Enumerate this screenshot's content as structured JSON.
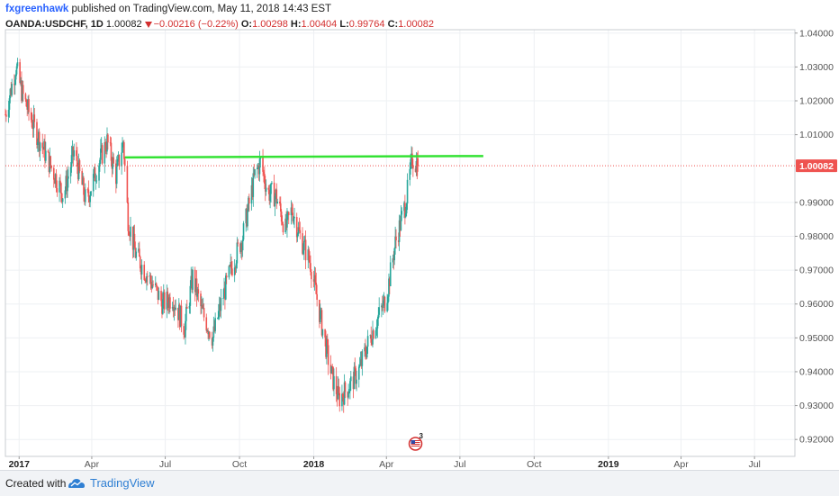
{
  "header": {
    "user": "fxgreenhawk",
    "published_text": " published on TradingView.com, May 11, 2018 14:43 EST",
    "symbol": "OANDA:USDCHF, 1D",
    "last": "1.00082",
    "change": "−0.00216 (−0.22%)",
    "o_label": "O:",
    "o_value": "1.00298",
    "h_label": "H:",
    "h_value": "1.00404",
    "l_label": "L:",
    "l_value": "0.99764",
    "c_label": "C:",
    "c_value": "1.00082",
    "change_direction_icon": "triangle-down-icon"
  },
  "footer": {
    "created_with": "Created with",
    "brand": "TradingView",
    "logo_icon": "tradingview-cloud-icon"
  },
  "colors": {
    "up": "#26a69a",
    "down": "#ef5350",
    "resistance_line": "#33e233",
    "price_line": "#ef5350",
    "price_badge": "#ef5350",
    "grid": "#eef0f3",
    "axis_text": "#555555"
  },
  "chart_data": {
    "type": "candlestick",
    "title": "",
    "instrument": "OANDA:USDCHF",
    "interval": "1D",
    "y_range": [
      0.915,
      1.041
    ],
    "y_ticks": [
      "1.04000",
      "1.03000",
      "1.02000",
      "1.01000",
      "0.99000",
      "0.98000",
      "0.97000",
      "0.96000",
      "0.95000",
      "0.94000",
      "0.93000",
      "0.92000"
    ],
    "y_tick_values": [
      1.04,
      1.03,
      1.02,
      1.01,
      0.99,
      0.98,
      0.97,
      0.96,
      0.95,
      0.94,
      0.93,
      0.92
    ],
    "x_ticks": [
      "2017",
      "Apr",
      "Jul",
      "Oct",
      "2018",
      "Apr",
      "Jul",
      "Oct",
      "2019",
      "Apr",
      "Jul"
    ],
    "x_ticks_bold": [
      "2017",
      "2018",
      "2019"
    ],
    "x_tick_dates": [
      "2017-01-01",
      "2017-04-01",
      "2017-07-01",
      "2017-10-01",
      "2018-01-01",
      "2018-04-01",
      "2018-07-01",
      "2018-10-01",
      "2019-01-01",
      "2019-04-01",
      "2019-07-01"
    ],
    "x_range": [
      "2016-12-15",
      "2019-08-20"
    ],
    "current_price": 1.00082,
    "current_price_label": "1.00082",
    "resistance_line": {
      "from": "2017-05-12",
      "to": "2018-07-30",
      "y_from": 1.0033,
      "y_to": 1.0037
    },
    "path_dates": [
      "2016-12-15",
      "2016-12-28",
      "2017-01-05",
      "2017-01-20",
      "2017-02-05",
      "2017-02-25",
      "2017-03-10",
      "2017-03-25",
      "2017-04-10",
      "2017-04-20",
      "2017-05-01",
      "2017-05-10",
      "2017-05-16",
      "2017-05-25",
      "2017-06-05",
      "2017-06-15",
      "2017-06-28",
      "2017-07-10",
      "2017-07-25",
      "2017-08-04",
      "2017-08-15",
      "2017-08-29",
      "2017-09-08",
      "2017-09-20",
      "2017-10-05",
      "2017-10-20",
      "2017-10-27",
      "2017-11-05",
      "2017-11-15",
      "2017-11-27",
      "2017-12-05",
      "2017-12-15",
      "2017-12-28",
      "2018-01-10",
      "2018-01-22",
      "2018-02-01",
      "2018-02-15",
      "2018-02-27",
      "2018-03-10",
      "2018-03-20",
      "2018-04-01",
      "2018-04-12",
      "2018-04-25",
      "2018-05-03",
      "2018-05-10"
    ],
    "path_closes": [
      1.016,
      1.03,
      1.022,
      1.012,
      1.003,
      0.992,
      1.005,
      0.99,
      1.002,
      1.008,
      0.998,
      1.008,
      0.985,
      0.975,
      0.97,
      0.966,
      0.96,
      0.962,
      0.953,
      0.968,
      0.958,
      0.95,
      0.96,
      0.97,
      0.98,
      0.998,
      1.002,
      0.993,
      0.992,
      0.982,
      0.988,
      0.98,
      0.972,
      0.955,
      0.94,
      0.932,
      0.936,
      0.941,
      0.949,
      0.955,
      0.962,
      0.978,
      0.99,
      1.003,
      1.0008
    ],
    "events_badge": "3",
    "events_icon": "us-flag-events-icon",
    "events_date": "2018-05-07"
  }
}
